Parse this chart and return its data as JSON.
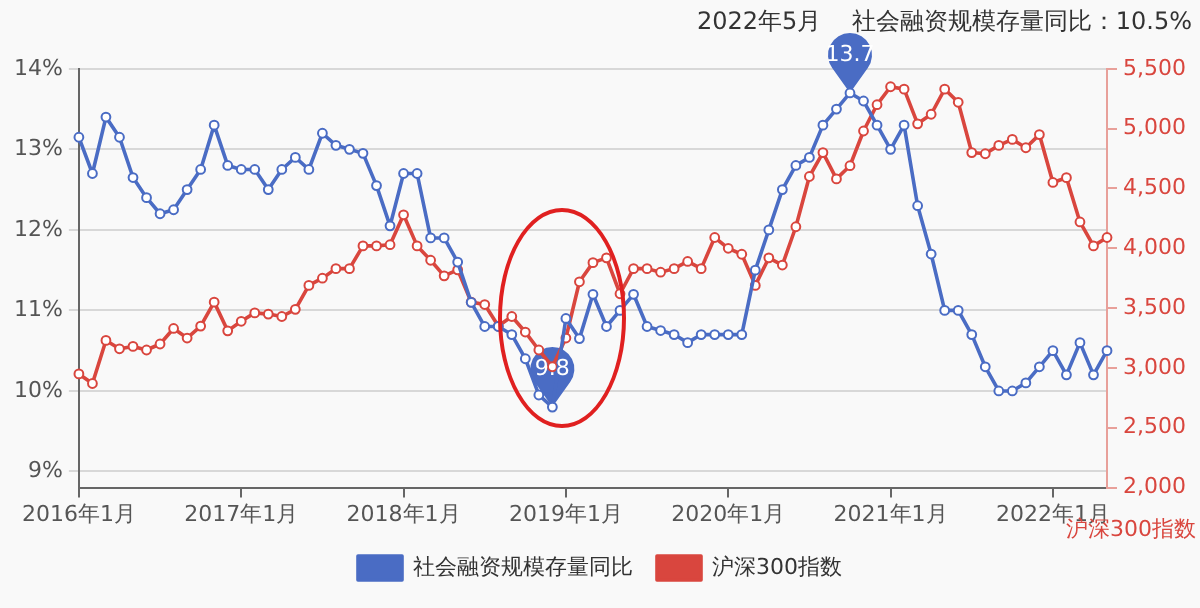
{
  "chart_data": {
    "type": "line",
    "title": "2022年5月    社会融资规模存量同比：10.5%",
    "y2label": "沪深300指数",
    "categories": [
      "2016年1月",
      null,
      null,
      null,
      null,
      null,
      null,
      null,
      null,
      null,
      null,
      null,
      "2017年1月",
      null,
      null,
      null,
      null,
      null,
      null,
      null,
      null,
      null,
      null,
      null,
      "2018年1月",
      null,
      null,
      null,
      null,
      null,
      null,
      null,
      null,
      null,
      null,
      null,
      "2019年1月",
      null,
      null,
      null,
      null,
      null,
      null,
      null,
      null,
      null,
      null,
      null,
      "2020年1月",
      null,
      null,
      null,
      null,
      null,
      null,
      null,
      null,
      null,
      null,
      null,
      "2021年1月",
      null,
      null,
      null,
      null,
      null,
      null,
      null,
      null,
      null,
      null,
      null,
      "2022年1月",
      null,
      null,
      null,
      null
    ],
    "series": [
      {
        "name": "社会融资规模存量同比",
        "color": "#4a6cc4",
        "values": [
          13.15,
          12.7,
          13.4,
          13.15,
          12.65,
          12.4,
          12.2,
          12.25,
          12.5,
          12.75,
          13.3,
          12.8,
          12.75,
          12.75,
          12.5,
          12.75,
          12.9,
          12.75,
          13.2,
          13.05,
          13.0,
          12.95,
          12.55,
          12.05,
          12.7,
          12.7,
          11.9,
          11.9,
          11.6,
          11.1,
          10.8,
          10.8,
          10.7,
          10.4,
          9.95,
          9.8,
          10.9,
          10.65,
          11.2,
          10.8,
          11.0,
          11.2,
          10.8,
          10.75,
          10.7,
          10.6,
          10.7,
          10.7,
          10.7,
          10.7,
          11.5,
          12.0,
          12.5,
          12.8,
          12.9,
          13.3,
          13.5,
          13.7,
          13.6,
          13.3,
          13.0,
          13.3,
          12.3,
          11.7,
          11.0,
          11.0,
          10.7,
          10.3,
          10.0,
          10.0,
          10.1,
          10.3,
          10.5,
          10.2,
          10.6,
          10.2,
          10.5
        ]
      },
      {
        "name": "沪深300指数",
        "color": "#d9463e",
        "axis": "y2",
        "values": [
          2950,
          2870,
          3230,
          3160,
          3180,
          3150,
          3200,
          3330,
          3250,
          3350,
          3550,
          3310,
          3390,
          3460,
          3450,
          3430,
          3490,
          3690,
          3750,
          3830,
          3830,
          4020,
          4020,
          4030,
          4280,
          4020,
          3900,
          3770,
          3820,
          3550,
          3530,
          3350,
          3430,
          3300,
          3150,
          3010,
          3250,
          3720,
          3880,
          3920,
          3620,
          3830,
          3830,
          3800,
          3830,
          3890,
          3830,
          4090,
          4000,
          3950,
          3690,
          3920,
          3860,
          4180,
          4600,
          4800,
          4580,
          4690,
          4980,
          5200,
          5350,
          5330,
          5040,
          5120,
          5330,
          5220,
          4800,
          4790,
          4860,
          4910,
          4840,
          4950,
          4550,
          4590,
          4220,
          4020,
          4090
        ]
      }
    ],
    "ylim": [
      8.8,
      14
    ],
    "yticks": [
      {
        "value": 9,
        "label": "9%"
      },
      {
        "value": 10,
        "label": "10%"
      },
      {
        "value": 11,
        "label": "11%"
      },
      {
        "value": 12,
        "label": "12%"
      },
      {
        "value": 13,
        "label": "13%"
      },
      {
        "value": 14,
        "label": "14%"
      }
    ],
    "y2lim": [
      2000,
      5500
    ],
    "y2ticks": [
      {
        "value": 2000,
        "label": "2,000"
      },
      {
        "value": 2500,
        "label": "2,500"
      },
      {
        "value": 3000,
        "label": "3,000"
      },
      {
        "value": 3500,
        "label": "3,500"
      },
      {
        "value": 4000,
        "label": "4,000"
      },
      {
        "value": 4500,
        "label": "4,500"
      },
      {
        "value": 5000,
        "label": "5,000"
      },
      {
        "value": 5500,
        "label": "5,500"
      }
    ],
    "annotations": [
      {
        "text": "13.7",
        "y": 13.7
      },
      {
        "text": "9.8",
        "y": 9.8
      }
    ],
    "grid": "y",
    "legend": "bottom",
    "marker": "circle",
    "line_style": "solid"
  }
}
